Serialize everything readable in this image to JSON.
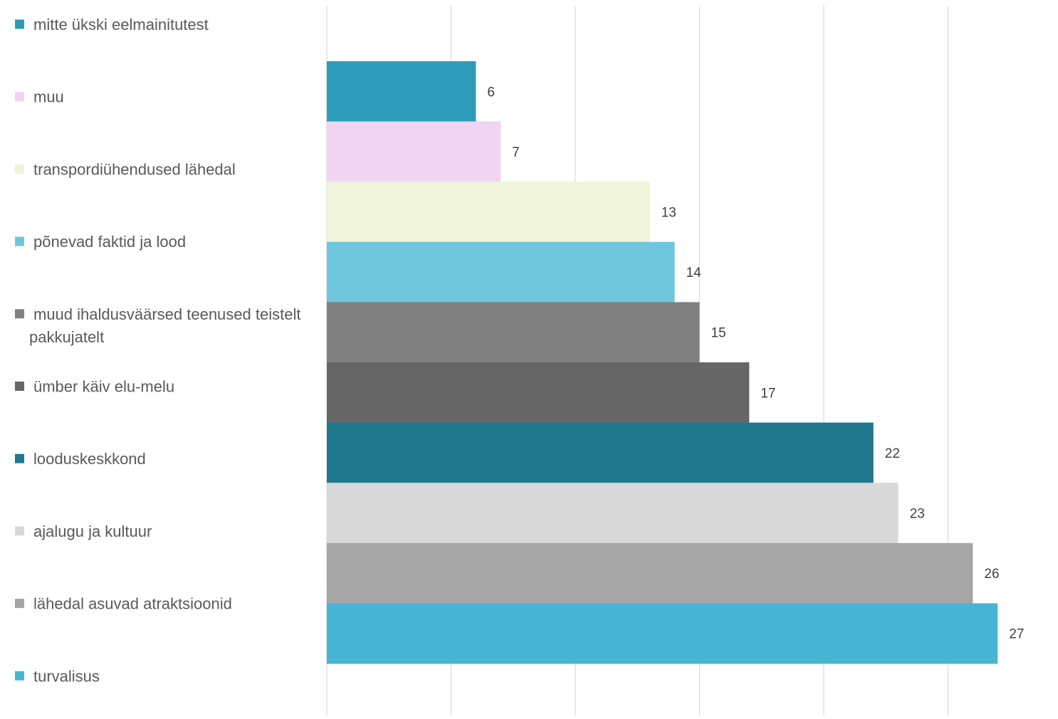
{
  "chart_data": {
    "type": "bar",
    "orientation": "horizontal",
    "xlim": [
      0,
      28
    ],
    "grid": true,
    "gridline_step": 5,
    "legend_position": "left",
    "series": [
      {
        "name": "mitte ükski eelmainitutest",
        "value": 6,
        "color": "#2E9CB8"
      },
      {
        "name": "muu",
        "value": 7,
        "color": "#F0D4F0"
      },
      {
        "name": "transpordiühendused lähedal",
        "value": 13,
        "color": "#EFF4DA"
      },
      {
        "name": "põnevad faktid ja lood",
        "value": 14,
        "color": "#6EC7DC"
      },
      {
        "name": "muud ihaldusväärsed teenused teistelt pakkujatelt",
        "value": 15,
        "color": "#808080",
        "label_lines": [
          "muud ihaldusväärsed teenused teistelt",
          "pakkujatelt"
        ]
      },
      {
        "name": "ümber käiv elu-melu",
        "value": 17,
        "color": "#666666"
      },
      {
        "name": "looduskeskkond",
        "value": 22,
        "color": "#20788C"
      },
      {
        "name": "ajalugu ja kultuur",
        "value": 23,
        "color": "#D9D9D9"
      },
      {
        "name": "lähedal asuvad atraktsioonid",
        "value": 26,
        "color": "#A6A6A6"
      },
      {
        "name": "turvalisus",
        "value": 27,
        "color": "#48B6D3"
      }
    ]
  }
}
